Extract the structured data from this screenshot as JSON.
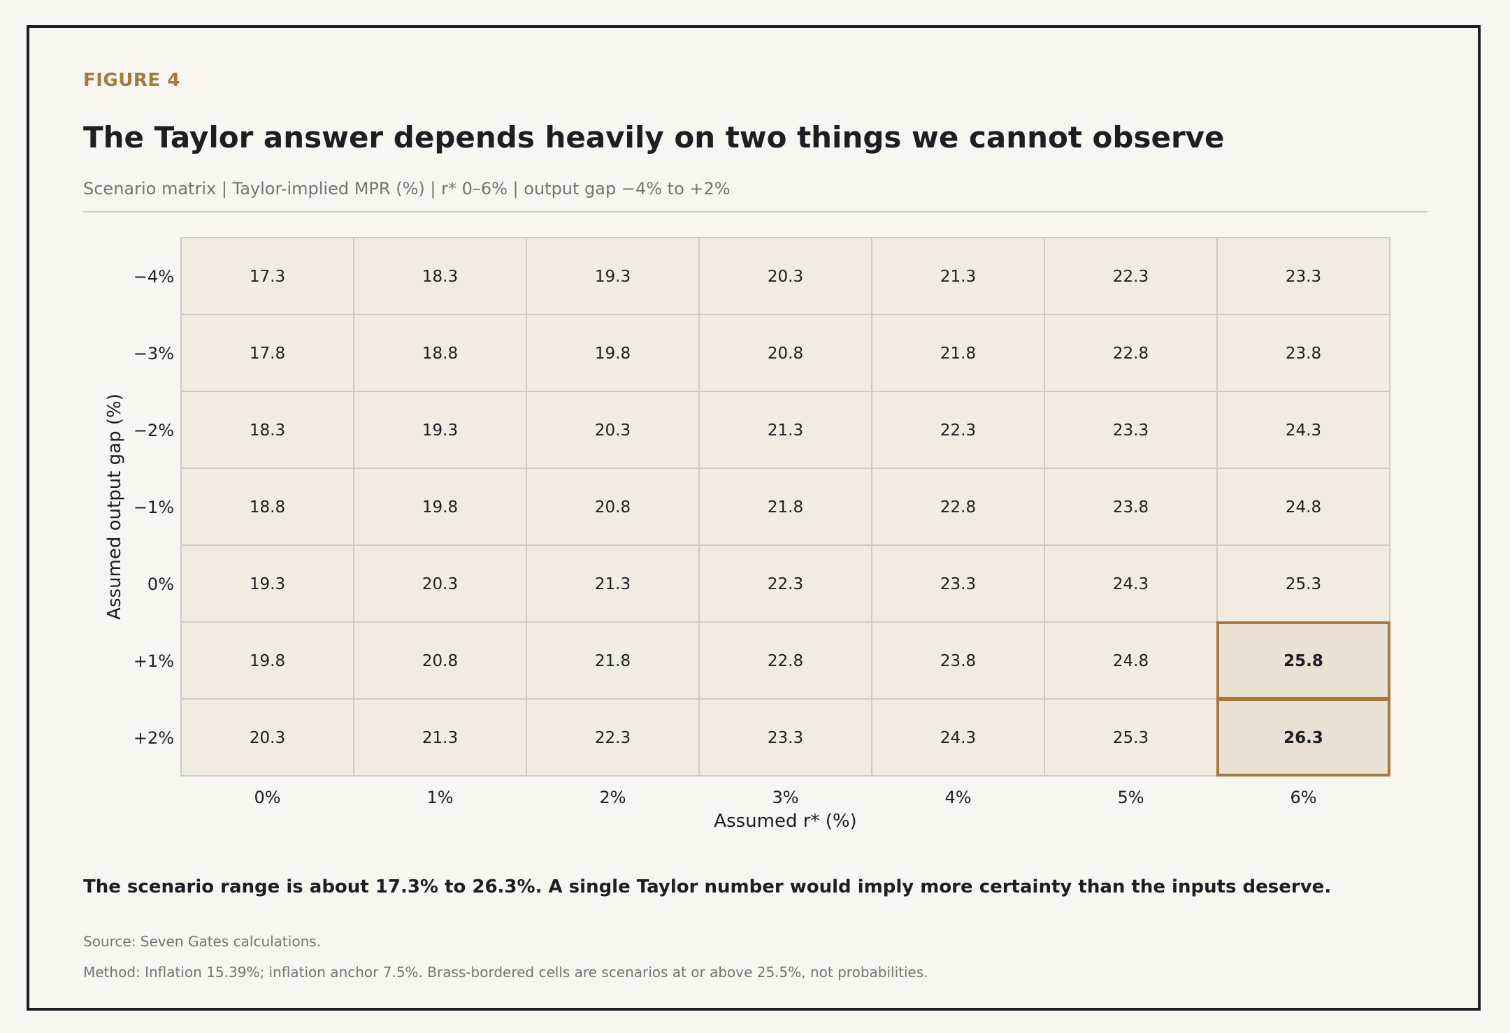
{
  "figure_label": "FIGURE 4",
  "title": "The Taylor answer depends heavily on two things we cannot observe",
  "subtitle": "Scenario matrix | Taylor-implied MPR (%) | r* 0–6% | output gap −4% to +2%",
  "takeaway": "The scenario range is about 17.3% to 26.3%. A single Taylor number would imply more certainty than the inputs deserve.",
  "source": "Source: Seven Gates calculations.",
  "method": "Method: Inflation 15.39%; inflation anchor 7.5%. Brass-bordered cells are scenarios at or above 25.5%, not probabilities.",
  "colors": {
    "cell_fill": "#f0ece1",
    "cell_highlight_fill": "#e8e1d4",
    "cell_border": "#cfcbc3",
    "highlight_border": "#a47a3f",
    "text": "#1c1e22"
  },
  "chart_data": {
    "type": "heatmap",
    "xlabel": "Assumed r* (%)",
    "ylabel": "Assumed output gap (%)",
    "x_categories": [
      "0%",
      "1%",
      "2%",
      "3%",
      "4%",
      "5%",
      "6%"
    ],
    "y_categories": [
      "−4%",
      "−3%",
      "−2%",
      "−1%",
      "0%",
      "+1%",
      "+2%"
    ],
    "values": [
      [
        "17.3",
        "18.3",
        "19.3",
        "20.3",
        "21.3",
        "22.3",
        "23.3"
      ],
      [
        "17.8",
        "18.8",
        "19.8",
        "20.8",
        "21.8",
        "22.8",
        "23.8"
      ],
      [
        "18.3",
        "19.3",
        "20.3",
        "21.3",
        "22.3",
        "23.3",
        "24.3"
      ],
      [
        "18.8",
        "19.8",
        "20.8",
        "21.8",
        "22.8",
        "23.8",
        "24.8"
      ],
      [
        "19.3",
        "20.3",
        "21.3",
        "22.3",
        "23.3",
        "24.3",
        "25.3"
      ],
      [
        "19.8",
        "20.8",
        "21.8",
        "22.8",
        "23.8",
        "24.8",
        "25.8"
      ],
      [
        "20.3",
        "21.3",
        "22.3",
        "23.3",
        "24.3",
        "25.3",
        "26.3"
      ]
    ],
    "highlight_threshold": 25.5
  }
}
